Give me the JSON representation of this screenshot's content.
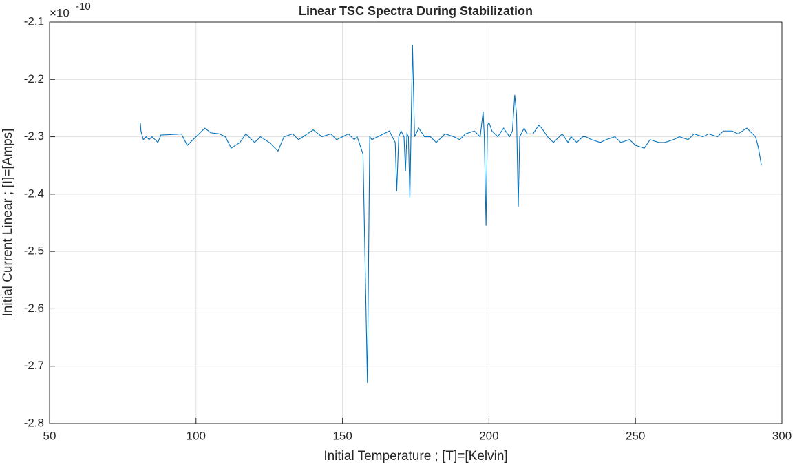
{
  "chart_data": {
    "type": "line",
    "title": "Linear TSC Spectra During Stabilization",
    "x_label": "Initial Temperature ; [T]=[Kelvin]",
    "y_label": "Initial Current Linear ; [I]=[Amps]",
    "y_multiplier": "×10",
    "y_exponent": "-10",
    "xlim": [
      50,
      300
    ],
    "xticks": [
      50,
      100,
      150,
      200,
      250,
      300
    ],
    "ylim": [
      -2.8,
      -2.1
    ],
    "yticks": [
      -2.8,
      -2.7,
      -2.6,
      -2.5,
      -2.4,
      -2.3,
      -2.2,
      -2.1
    ],
    "grid": true,
    "x": [
      81,
      81.2,
      82,
      83,
      84,
      85,
      86,
      87,
      88,
      92,
      95,
      97,
      100,
      103,
      105,
      108,
      110,
      112,
      115,
      117,
      120,
      122,
      125,
      128,
      130,
      133,
      135,
      138,
      140,
      143,
      146,
      148,
      150,
      152,
      154,
      155,
      157,
      158.5,
      159.3,
      160,
      162,
      164,
      166,
      167,
      168,
      168.5,
      169.2,
      170,
      171,
      171.5,
      172,
      172.5,
      173,
      173.9,
      174.6,
      176,
      178,
      180,
      182,
      185,
      188,
      190,
      192,
      195,
      197,
      198,
      198.4,
      199,
      199.5,
      200,
      201,
      203,
      205,
      207,
      208,
      208.8,
      209.4,
      210,
      210.5,
      212,
      213,
      215,
      217,
      218,
      220,
      222,
      223,
      225,
      227,
      228,
      230,
      232,
      233,
      235,
      238,
      240,
      243,
      245,
      248,
      250,
      253,
      255,
      258,
      260,
      263,
      265,
      268,
      270,
      273,
      275,
      278,
      280,
      283,
      285,
      288,
      290,
      291,
      292,
      293
    ],
    "series": [
      {
        "name": "I",
        "color": "#0072bd",
        "values": [
          -2.276,
          -2.29,
          -2.305,
          -2.3,
          -2.305,
          -2.3,
          -2.305,
          -2.31,
          -2.297,
          -2.296,
          -2.295,
          -2.315,
          -2.3,
          -2.285,
          -2.293,
          -2.295,
          -2.3,
          -2.32,
          -2.31,
          -2.295,
          -2.31,
          -2.3,
          -2.31,
          -2.325,
          -2.3,
          -2.295,
          -2.305,
          -2.295,
          -2.288,
          -2.3,
          -2.295,
          -2.305,
          -2.3,
          -2.295,
          -2.305,
          -2.3,
          -2.33,
          -2.729,
          -2.3,
          -2.305,
          -2.3,
          -2.295,
          -2.29,
          -2.3,
          -2.31,
          -2.395,
          -2.3,
          -2.29,
          -2.3,
          -2.36,
          -2.295,
          -2.3,
          -2.407,
          -2.14,
          -2.3,
          -2.285,
          -2.3,
          -2.3,
          -2.31,
          -2.295,
          -2.3,
          -2.305,
          -2.295,
          -2.29,
          -2.3,
          -2.256,
          -2.3,
          -2.455,
          -2.28,
          -2.275,
          -2.29,
          -2.3,
          -2.285,
          -2.3,
          -2.29,
          -2.227,
          -2.26,
          -2.422,
          -2.3,
          -2.285,
          -2.295,
          -2.295,
          -2.28,
          -2.285,
          -2.3,
          -2.31,
          -2.305,
          -2.295,
          -2.31,
          -2.3,
          -2.31,
          -2.3,
          -2.3,
          -2.305,
          -2.31,
          -2.305,
          -2.3,
          -2.31,
          -2.305,
          -2.315,
          -2.32,
          -2.305,
          -2.31,
          -2.31,
          -2.305,
          -2.3,
          -2.305,
          -2.295,
          -2.3,
          -2.295,
          -2.3,
          -2.29,
          -2.29,
          -2.295,
          -2.285,
          -2.295,
          -2.3,
          -2.32,
          -2.35
        ]
      }
    ]
  }
}
